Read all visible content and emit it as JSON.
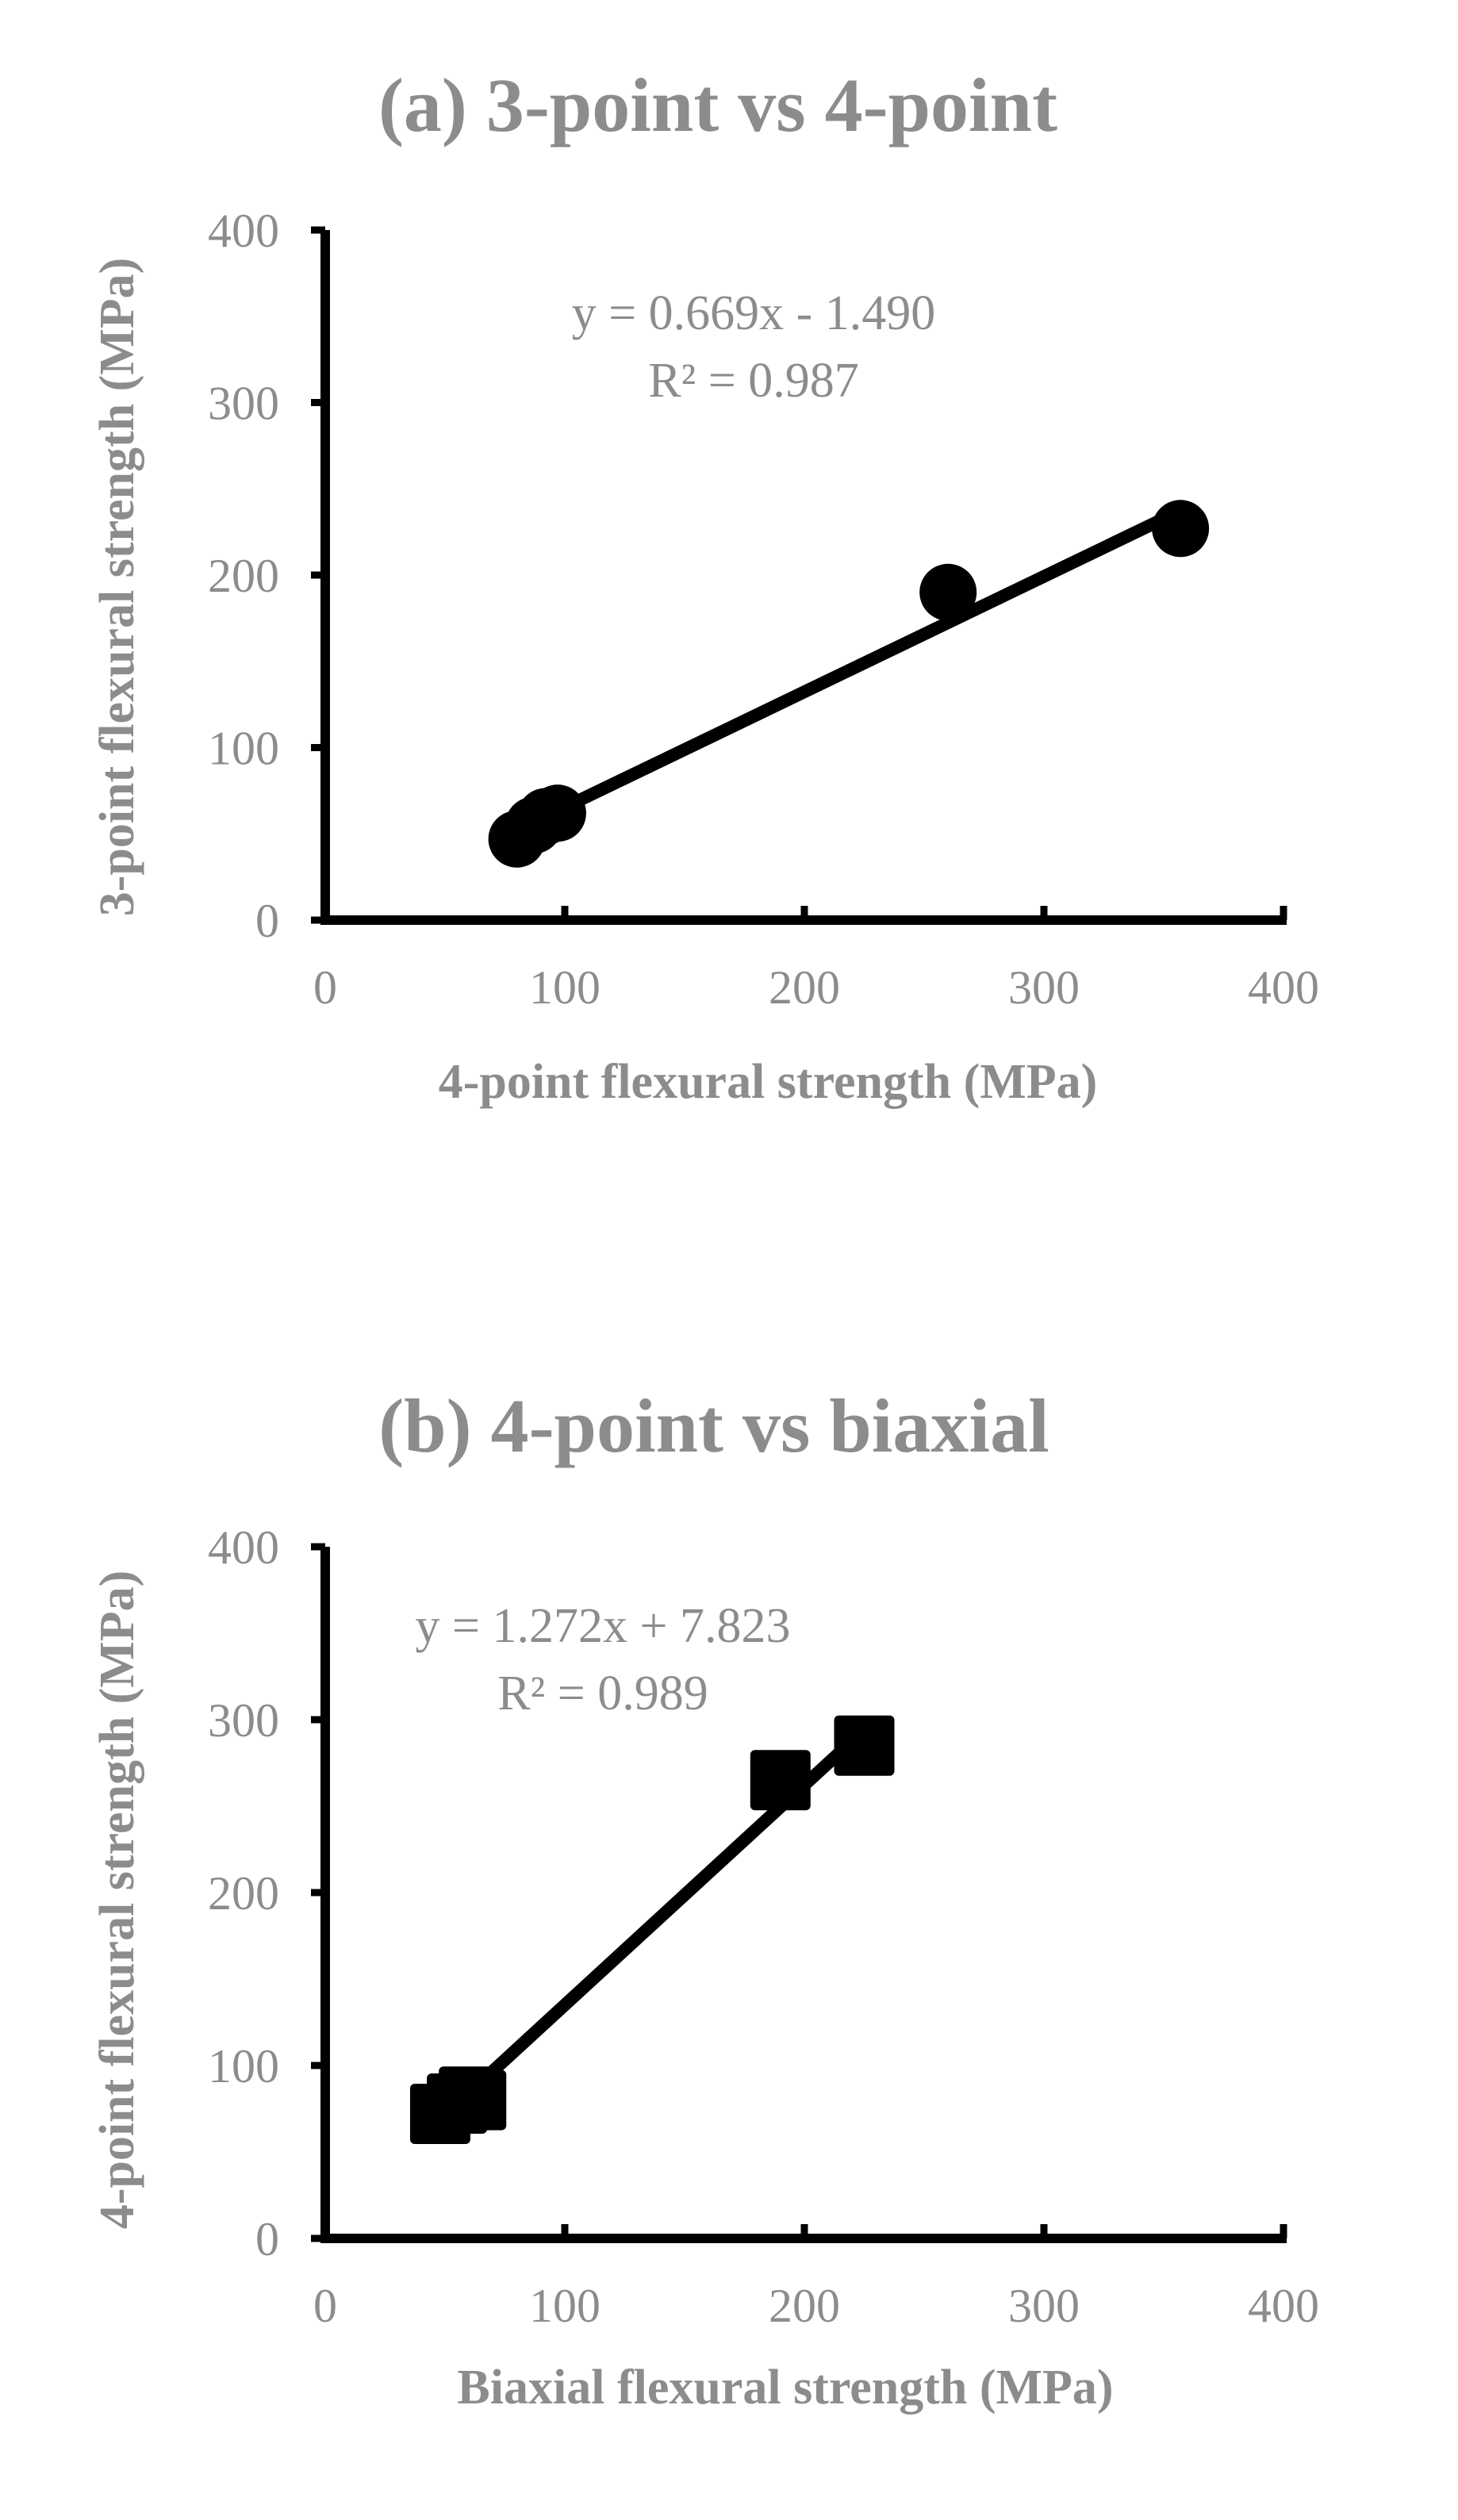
{
  "chart_data": [
    {
      "type": "scatter",
      "title": "(a) 3-point vs 4-point",
      "xlabel": "4-point flexural strength (MPa)",
      "ylabel": "3-point flexural strength (MPa)",
      "xlim": [
        0,
        400
      ],
      "ylim": [
        0,
        400
      ],
      "xticks": [
        "0",
        "100",
        "200",
        "300",
        "400"
      ],
      "yticks": [
        "0",
        "100",
        "200",
        "300",
        "400"
      ],
      "marker": "circle",
      "grid": false,
      "series": [
        {
          "x": [
            80,
            87,
            92,
            97,
            260,
            357
          ],
          "y": [
            47,
            55,
            60,
            62,
            190,
            227
          ]
        }
      ],
      "trendline": {
        "slope": 0.669,
        "intercept": -1.49,
        "x_range": [
          80,
          357
        ]
      },
      "equation": "y = 0.669x - 1.490",
      "r_squared": "R² = 0.987"
    },
    {
      "type": "scatter",
      "title": "(b) 4-point vs biaxial",
      "xlabel": "Biaxial flexural strength (MPa)",
      "ylabel": "4-point flexural strength (MPa)",
      "xlim": [
        0,
        400
      ],
      "ylim": [
        0,
        400
      ],
      "xticks": [
        "0",
        "100",
        "200",
        "300",
        "400"
      ],
      "yticks": [
        "0",
        "100",
        "200",
        "300",
        "400"
      ],
      "marker": "square",
      "grid": false,
      "series": [
        {
          "x": [
            48,
            55,
            60,
            63,
            190,
            225
          ],
          "y": [
            72,
            78,
            82,
            80,
            265,
            285
          ]
        }
      ],
      "trendline": {
        "slope": 1.272,
        "intercept": 7.823,
        "x_range": [
          53,
          225
        ]
      },
      "equation": "y = 1.272x + 7.823",
      "r_squared": "R² = 0.989"
    }
  ]
}
